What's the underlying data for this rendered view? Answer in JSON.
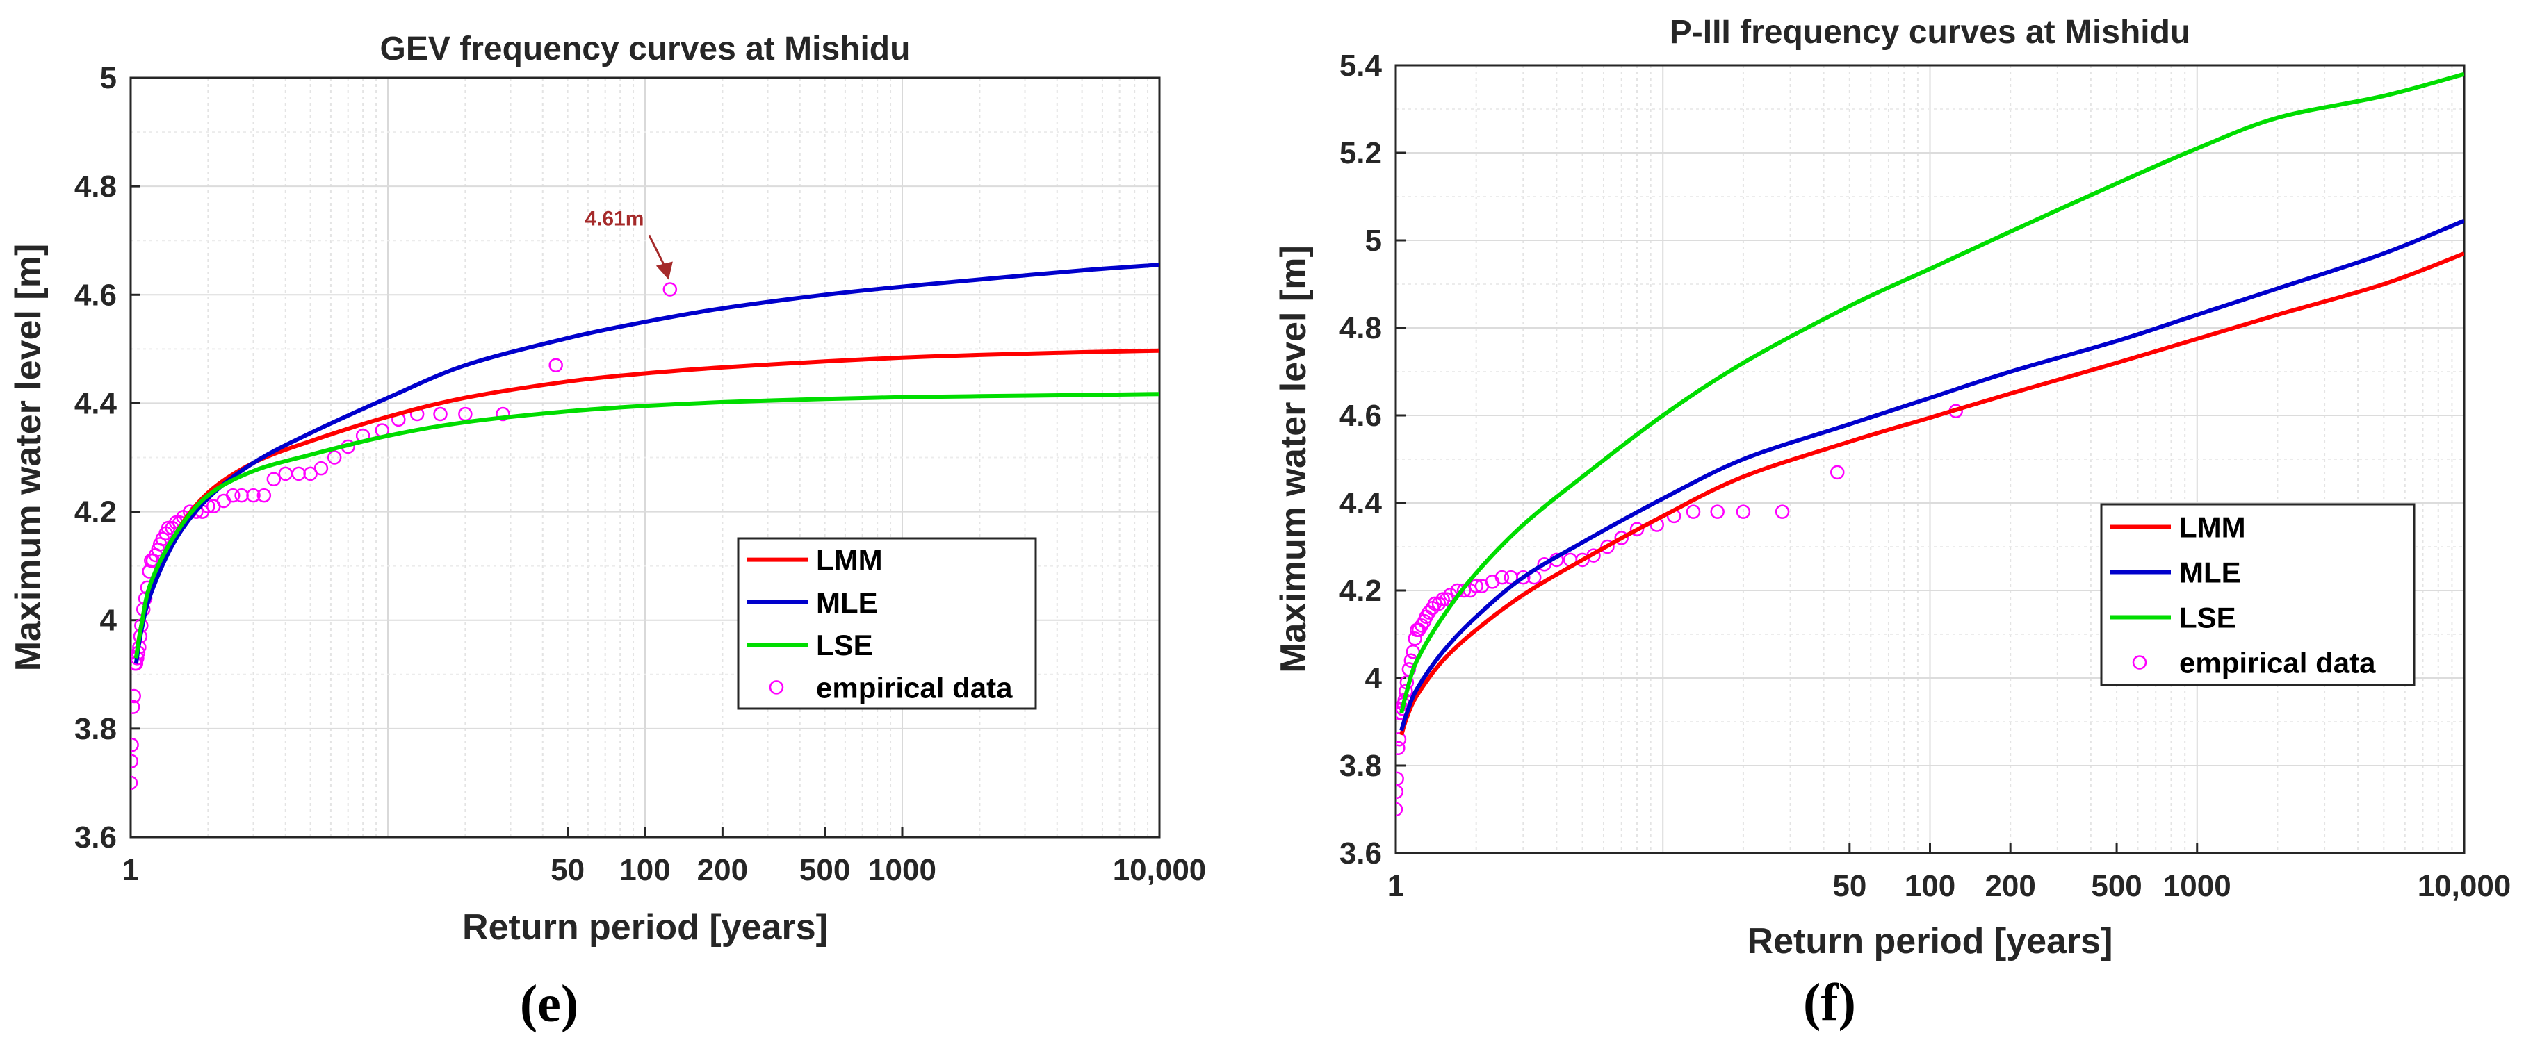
{
  "chart_data": [
    {
      "type": "line",
      "title": "GEV frequency curves at Mishidu",
      "xlabel": "Return period [years]",
      "ylabel": "Maximum water level [m]",
      "caption": "(e)",
      "xscale": "log",
      "xlim": [
        1,
        10000
      ],
      "ylim": [
        3.6,
        5.0
      ],
      "grid": true,
      "legend_position": "lower-right",
      "x_ticks": [
        1,
        50,
        100,
        200,
        500,
        1000,
        10000
      ],
      "x_tick_labels": [
        "1",
        "50",
        "100",
        "200",
        "500",
        "1000",
        "10,000"
      ],
      "y_ticks": [
        3.6,
        3.8,
        4.0,
        4.2,
        4.4,
        4.6,
        4.8,
        5.0
      ],
      "y_tick_labels": [
        "3.6",
        "3.8",
        "4",
        "4.2",
        "4.4",
        "4.6",
        "4.8",
        "5"
      ],
      "series": [
        {
          "name": "LMM",
          "color": "#ff0000",
          "x": [
            1.05,
            1.1,
            1.2,
            1.5,
            2,
            3,
            5,
            10,
            20,
            50,
            100,
            200,
            500,
            1000,
            2000,
            5000,
            10000
          ],
          "y": [
            3.93,
            3.99,
            4.06,
            4.16,
            4.235,
            4.29,
            4.33,
            4.375,
            4.41,
            4.44,
            4.455,
            4.466,
            4.477,
            4.484,
            4.489,
            4.494,
            4.497
          ]
        },
        {
          "name": "MLE",
          "color": "#0000cc",
          "x": [
            1.05,
            1.1,
            1.2,
            1.5,
            2,
            3,
            5,
            10,
            20,
            50,
            100,
            200,
            500,
            1000,
            2000,
            5000,
            10000
          ],
          "y": [
            3.92,
            3.98,
            4.05,
            4.15,
            4.225,
            4.29,
            4.345,
            4.41,
            4.47,
            4.52,
            4.55,
            4.575,
            4.6,
            4.615,
            4.628,
            4.645,
            4.655
          ]
        },
        {
          "name": "LSE",
          "color": "#00dd00",
          "x": [
            1.05,
            1.1,
            1.2,
            1.5,
            2,
            3,
            5,
            10,
            20,
            50,
            100,
            200,
            500,
            1000,
            2000,
            5000,
            10000
          ],
          "y": [
            3.93,
            3.99,
            4.07,
            4.16,
            4.23,
            4.275,
            4.305,
            4.34,
            4.365,
            4.385,
            4.395,
            4.402,
            4.408,
            4.411,
            4.413,
            4.415,
            4.417
          ]
        },
        {
          "name": "empirical data",
          "color": "#ff00ff",
          "marker": "circle",
          "x": [
            1.0,
            1.005,
            1.01,
            1.02,
            1.03,
            1.04,
            1.05,
            1.06,
            1.07,
            1.08,
            1.09,
            1.1,
            1.12,
            1.14,
            1.16,
            1.18,
            1.2,
            1.22,
            1.25,
            1.28,
            1.3,
            1.33,
            1.37,
            1.4,
            1.45,
            1.5,
            1.55,
            1.6,
            1.7,
            1.8,
            1.9,
            2.0,
            2.1,
            2.3,
            2.5,
            2.7,
            3.0,
            3.3,
            3.6,
            4.0,
            4.5,
            5.0,
            5.5,
            6.2,
            7.0,
            8.0,
            9.5,
            11,
            13,
            16,
            20,
            28,
            45,
            125
          ],
          "y": [
            3.7,
            3.74,
            3.77,
            3.84,
            3.86,
            3.92,
            3.92,
            3.93,
            3.94,
            3.95,
            3.97,
            3.99,
            4.02,
            4.04,
            4.06,
            4.09,
            4.11,
            4.11,
            4.12,
            4.13,
            4.14,
            4.15,
            4.16,
            4.17,
            4.17,
            4.18,
            4.18,
            4.19,
            4.2,
            4.2,
            4.2,
            4.21,
            4.21,
            4.22,
            4.23,
            4.23,
            4.23,
            4.23,
            4.26,
            4.27,
            4.27,
            4.27,
            4.28,
            4.3,
            4.32,
            4.34,
            4.35,
            4.37,
            4.38,
            4.38,
            4.38,
            4.38,
            4.47,
            4.61
          ]
        }
      ],
      "annotations": [
        {
          "text": "4.61m",
          "x": 125,
          "y": 4.61,
          "color": "#a52a2a"
        }
      ]
    },
    {
      "type": "line",
      "title": "P-III frequency curves at Mishidu",
      "xlabel": "Return period [years]",
      "ylabel": "Maximum water level [m]",
      "caption": "(f)",
      "xscale": "log",
      "xlim": [
        1,
        10000
      ],
      "ylim": [
        3.6,
        5.4
      ],
      "grid": true,
      "legend_position": "center-right",
      "x_ticks": [
        1,
        50,
        100,
        200,
        500,
        1000,
        10000
      ],
      "x_tick_labels": [
        "1",
        "50",
        "100",
        "200",
        "500",
        "1000",
        "10,000"
      ],
      "y_ticks": [
        3.6,
        3.8,
        4.0,
        4.2,
        4.4,
        4.6,
        4.8,
        5.0,
        5.2,
        5.4
      ],
      "y_tick_labels": [
        "3.6",
        "3.8",
        "4",
        "4.2",
        "4.4",
        "4.6",
        "4.8",
        "5",
        "5.2",
        "5.4"
      ],
      "series": [
        {
          "name": "LMM",
          "color": "#ff0000",
          "x": [
            1.05,
            1.1,
            1.2,
            1.5,
            2,
            3,
            5,
            10,
            20,
            50,
            100,
            200,
            500,
            1000,
            2000,
            5000,
            10000
          ],
          "y": [
            3.87,
            3.91,
            3.96,
            4.04,
            4.11,
            4.19,
            4.27,
            4.37,
            4.46,
            4.54,
            4.595,
            4.65,
            4.72,
            4.775,
            4.83,
            4.9,
            4.97
          ]
        },
        {
          "name": "MLE",
          "color": "#0000cc",
          "x": [
            1.05,
            1.1,
            1.2,
            1.5,
            2,
            3,
            5,
            10,
            20,
            50,
            100,
            200,
            500,
            1000,
            2000,
            5000,
            10000
          ],
          "y": [
            3.88,
            3.92,
            3.975,
            4.06,
            4.14,
            4.23,
            4.31,
            4.41,
            4.5,
            4.58,
            4.64,
            4.7,
            4.77,
            4.83,
            4.89,
            4.97,
            5.045
          ]
        },
        {
          "name": "LSE",
          "color": "#00dd00",
          "x": [
            1.05,
            1.1,
            1.2,
            1.5,
            2,
            3,
            5,
            10,
            20,
            50,
            100,
            200,
            500,
            1000,
            2000,
            5000,
            10000
          ],
          "y": [
            3.92,
            3.97,
            4.04,
            4.14,
            4.24,
            4.35,
            4.46,
            4.6,
            4.72,
            4.85,
            4.935,
            5.02,
            5.13,
            5.21,
            5.28,
            5.33,
            5.38
          ]
        },
        {
          "name": "empirical data",
          "color": "#ff00ff",
          "marker": "circle",
          "x": [
            1.0,
            1.005,
            1.01,
            1.02,
            1.03,
            1.04,
            1.05,
            1.06,
            1.07,
            1.08,
            1.09,
            1.1,
            1.12,
            1.14,
            1.16,
            1.18,
            1.2,
            1.22,
            1.25,
            1.28,
            1.3,
            1.33,
            1.37,
            1.4,
            1.45,
            1.5,
            1.55,
            1.6,
            1.7,
            1.8,
            1.9,
            2.0,
            2.1,
            2.3,
            2.5,
            2.7,
            3.0,
            3.3,
            3.6,
            4.0,
            4.5,
            5.0,
            5.5,
            6.2,
            7.0,
            8.0,
            9.5,
            11,
            13,
            16,
            20,
            28,
            45,
            125
          ],
          "y": [
            3.7,
            3.74,
            3.77,
            3.84,
            3.86,
            3.92,
            3.92,
            3.93,
            3.94,
            3.95,
            3.97,
            3.99,
            4.02,
            4.04,
            4.06,
            4.09,
            4.11,
            4.11,
            4.12,
            4.13,
            4.14,
            4.15,
            4.16,
            4.17,
            4.17,
            4.18,
            4.18,
            4.19,
            4.2,
            4.2,
            4.2,
            4.21,
            4.21,
            4.22,
            4.23,
            4.23,
            4.23,
            4.23,
            4.26,
            4.27,
            4.27,
            4.27,
            4.28,
            4.3,
            4.32,
            4.34,
            4.35,
            4.37,
            4.38,
            4.38,
            4.38,
            4.38,
            4.47,
            4.61
          ]
        }
      ],
      "annotations": []
    }
  ]
}
